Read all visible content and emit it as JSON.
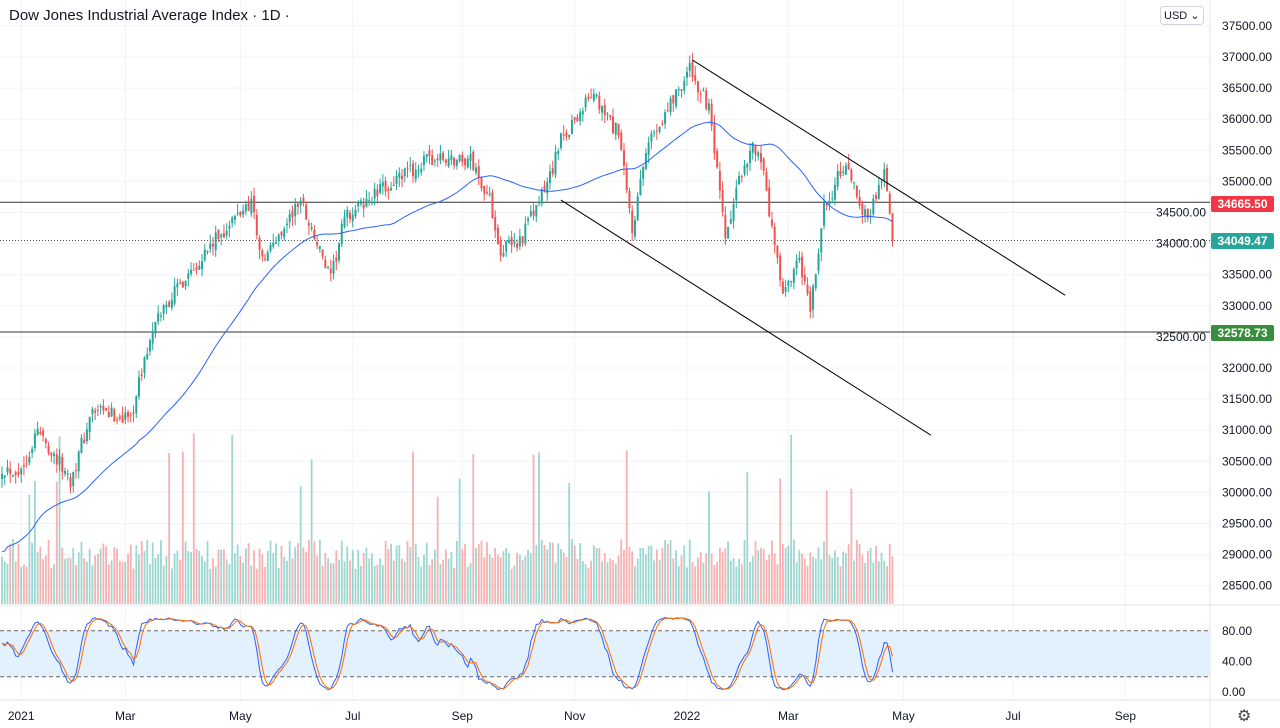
{
  "header": {
    "title": "Dow Jones Industrial Average Index · 1D ·",
    "currency": "USD"
  },
  "chart_data": {
    "type": "candlestick",
    "title": "Dow Jones Industrial Average Index",
    "interval": "1D",
    "ylim": [
      28200,
      37700
    ],
    "y_ticks": [
      37500,
      37000,
      36500,
      36000,
      35500,
      35000,
      34500,
      34000,
      33500,
      33000,
      32500,
      32000,
      31500,
      31000,
      30500,
      30000,
      29500,
      29000,
      28500
    ],
    "x_ticks": [
      {
        "label": "2021",
        "day": 7
      },
      {
        "label": "Mar",
        "day": 45
      },
      {
        "label": "May",
        "day": 87
      },
      {
        "label": "Jul",
        "day": 128
      },
      {
        "label": "Sep",
        "day": 168
      },
      {
        "label": "Nov",
        "day": 209
      },
      {
        "label": "2022",
        "day": 250
      },
      {
        "label": "Mar",
        "day": 287
      },
      {
        "label": "May",
        "day": 329
      },
      {
        "label": "Jul",
        "day": 369
      },
      {
        "label": "Sep",
        "day": 410
      }
    ],
    "close_anchors": [
      [
        0,
        30400
      ],
      [
        7,
        30350
      ],
      [
        13,
        31000
      ],
      [
        25,
        30200
      ],
      [
        33,
        31300
      ],
      [
        47,
        31200
      ],
      [
        53,
        32300
      ],
      [
        58,
        32900
      ],
      [
        69,
        33600
      ],
      [
        78,
        34050
      ],
      [
        91,
        34700
      ],
      [
        95,
        33700
      ],
      [
        109,
        34700
      ],
      [
        120,
        33400
      ],
      [
        125,
        34400
      ],
      [
        138,
        34850
      ],
      [
        156,
        35350
      ],
      [
        171,
        35350
      ],
      [
        178,
        34700
      ],
      [
        182,
        33900
      ],
      [
        189,
        34050
      ],
      [
        198,
        34850
      ],
      [
        204,
        35650
      ],
      [
        215,
        36400
      ],
      [
        225,
        35750
      ],
      [
        230,
        34200
      ],
      [
        236,
        35650
      ],
      [
        251,
        36800
      ],
      [
        258,
        36150
      ],
      [
        264,
        34050
      ],
      [
        271,
        35350
      ],
      [
        276,
        35600
      ],
      [
        285,
        33100
      ],
      [
        291,
        33700
      ],
      [
        295,
        32900
      ],
      [
        300,
        34550
      ],
      [
        307,
        35250
      ],
      [
        316,
        34400
      ],
      [
        322,
        35200
      ],
      [
        325,
        34049.47
      ]
    ],
    "moving_average": {
      "period": 50,
      "color": "#2962ff"
    },
    "price_lines": [
      {
        "label": "34665.50",
        "value": 34665.5,
        "color": "#f23645",
        "style": "solid"
      },
      {
        "label": "34049.47",
        "value": 34049.47,
        "color": "#26a69a",
        "style": "dotted"
      },
      {
        "label": "32578.73",
        "value": 32578.73,
        "color": "#388e3c",
        "style": "solid"
      }
    ],
    "trend_lines": [
      [
        [
          252,
          36950
        ],
        [
          388,
          33170
        ]
      ],
      [
        [
          204,
          34700
        ],
        [
          339,
          30920
        ]
      ]
    ],
    "stochastic": {
      "ticks": [
        "80.00",
        "40.00",
        "0.00"
      ],
      "upper": 80,
      "lower": 20,
      "k_color": "#2962ff",
      "d_color": "#ff6d00"
    },
    "colors": {
      "up": "#26a69a",
      "down": "#ef5350"
    }
  }
}
